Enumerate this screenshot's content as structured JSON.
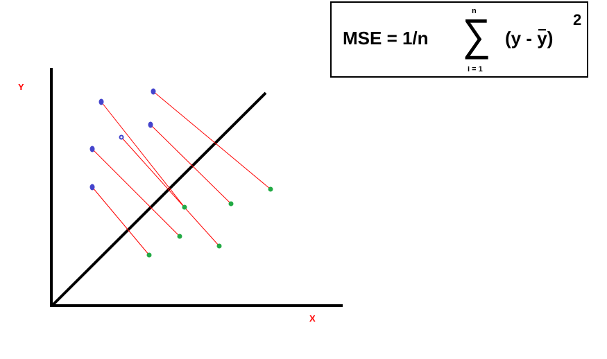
{
  "formula": {
    "lhs": "MSE = 1/n",
    "sum_upper": "n",
    "sum_lower": "i = 1",
    "term_open": "(y - ",
    "term_ybar": "y",
    "term_close": ")",
    "exponent": "2"
  },
  "axes": {
    "x_label": "X",
    "y_label": "Y"
  },
  "colors": {
    "axis": "#000000",
    "axis_label": "#ff0000",
    "actual_point": "#4444cc",
    "predicted_point": "#22aa44",
    "residual_line": "#ff0000"
  },
  "points": [
    {
      "actual": [
        146,
        147
      ],
      "predicted": [
        266,
        299
      ]
    },
    {
      "actual": [
        221,
        132
      ],
      "predicted": [
        390,
        273
      ]
    },
    {
      "actual": [
        217,
        180
      ],
      "predicted": [
        333,
        294
      ]
    },
    {
      "actual": [
        175,
        198
      ],
      "predicted": [
        316,
        355
      ]
    },
    {
      "actual": [
        133,
        215
      ],
      "predicted": [
        259,
        341
      ]
    },
    {
      "actual": [
        133,
        270
      ],
      "predicted": [
        215,
        368
      ]
    }
  ]
}
